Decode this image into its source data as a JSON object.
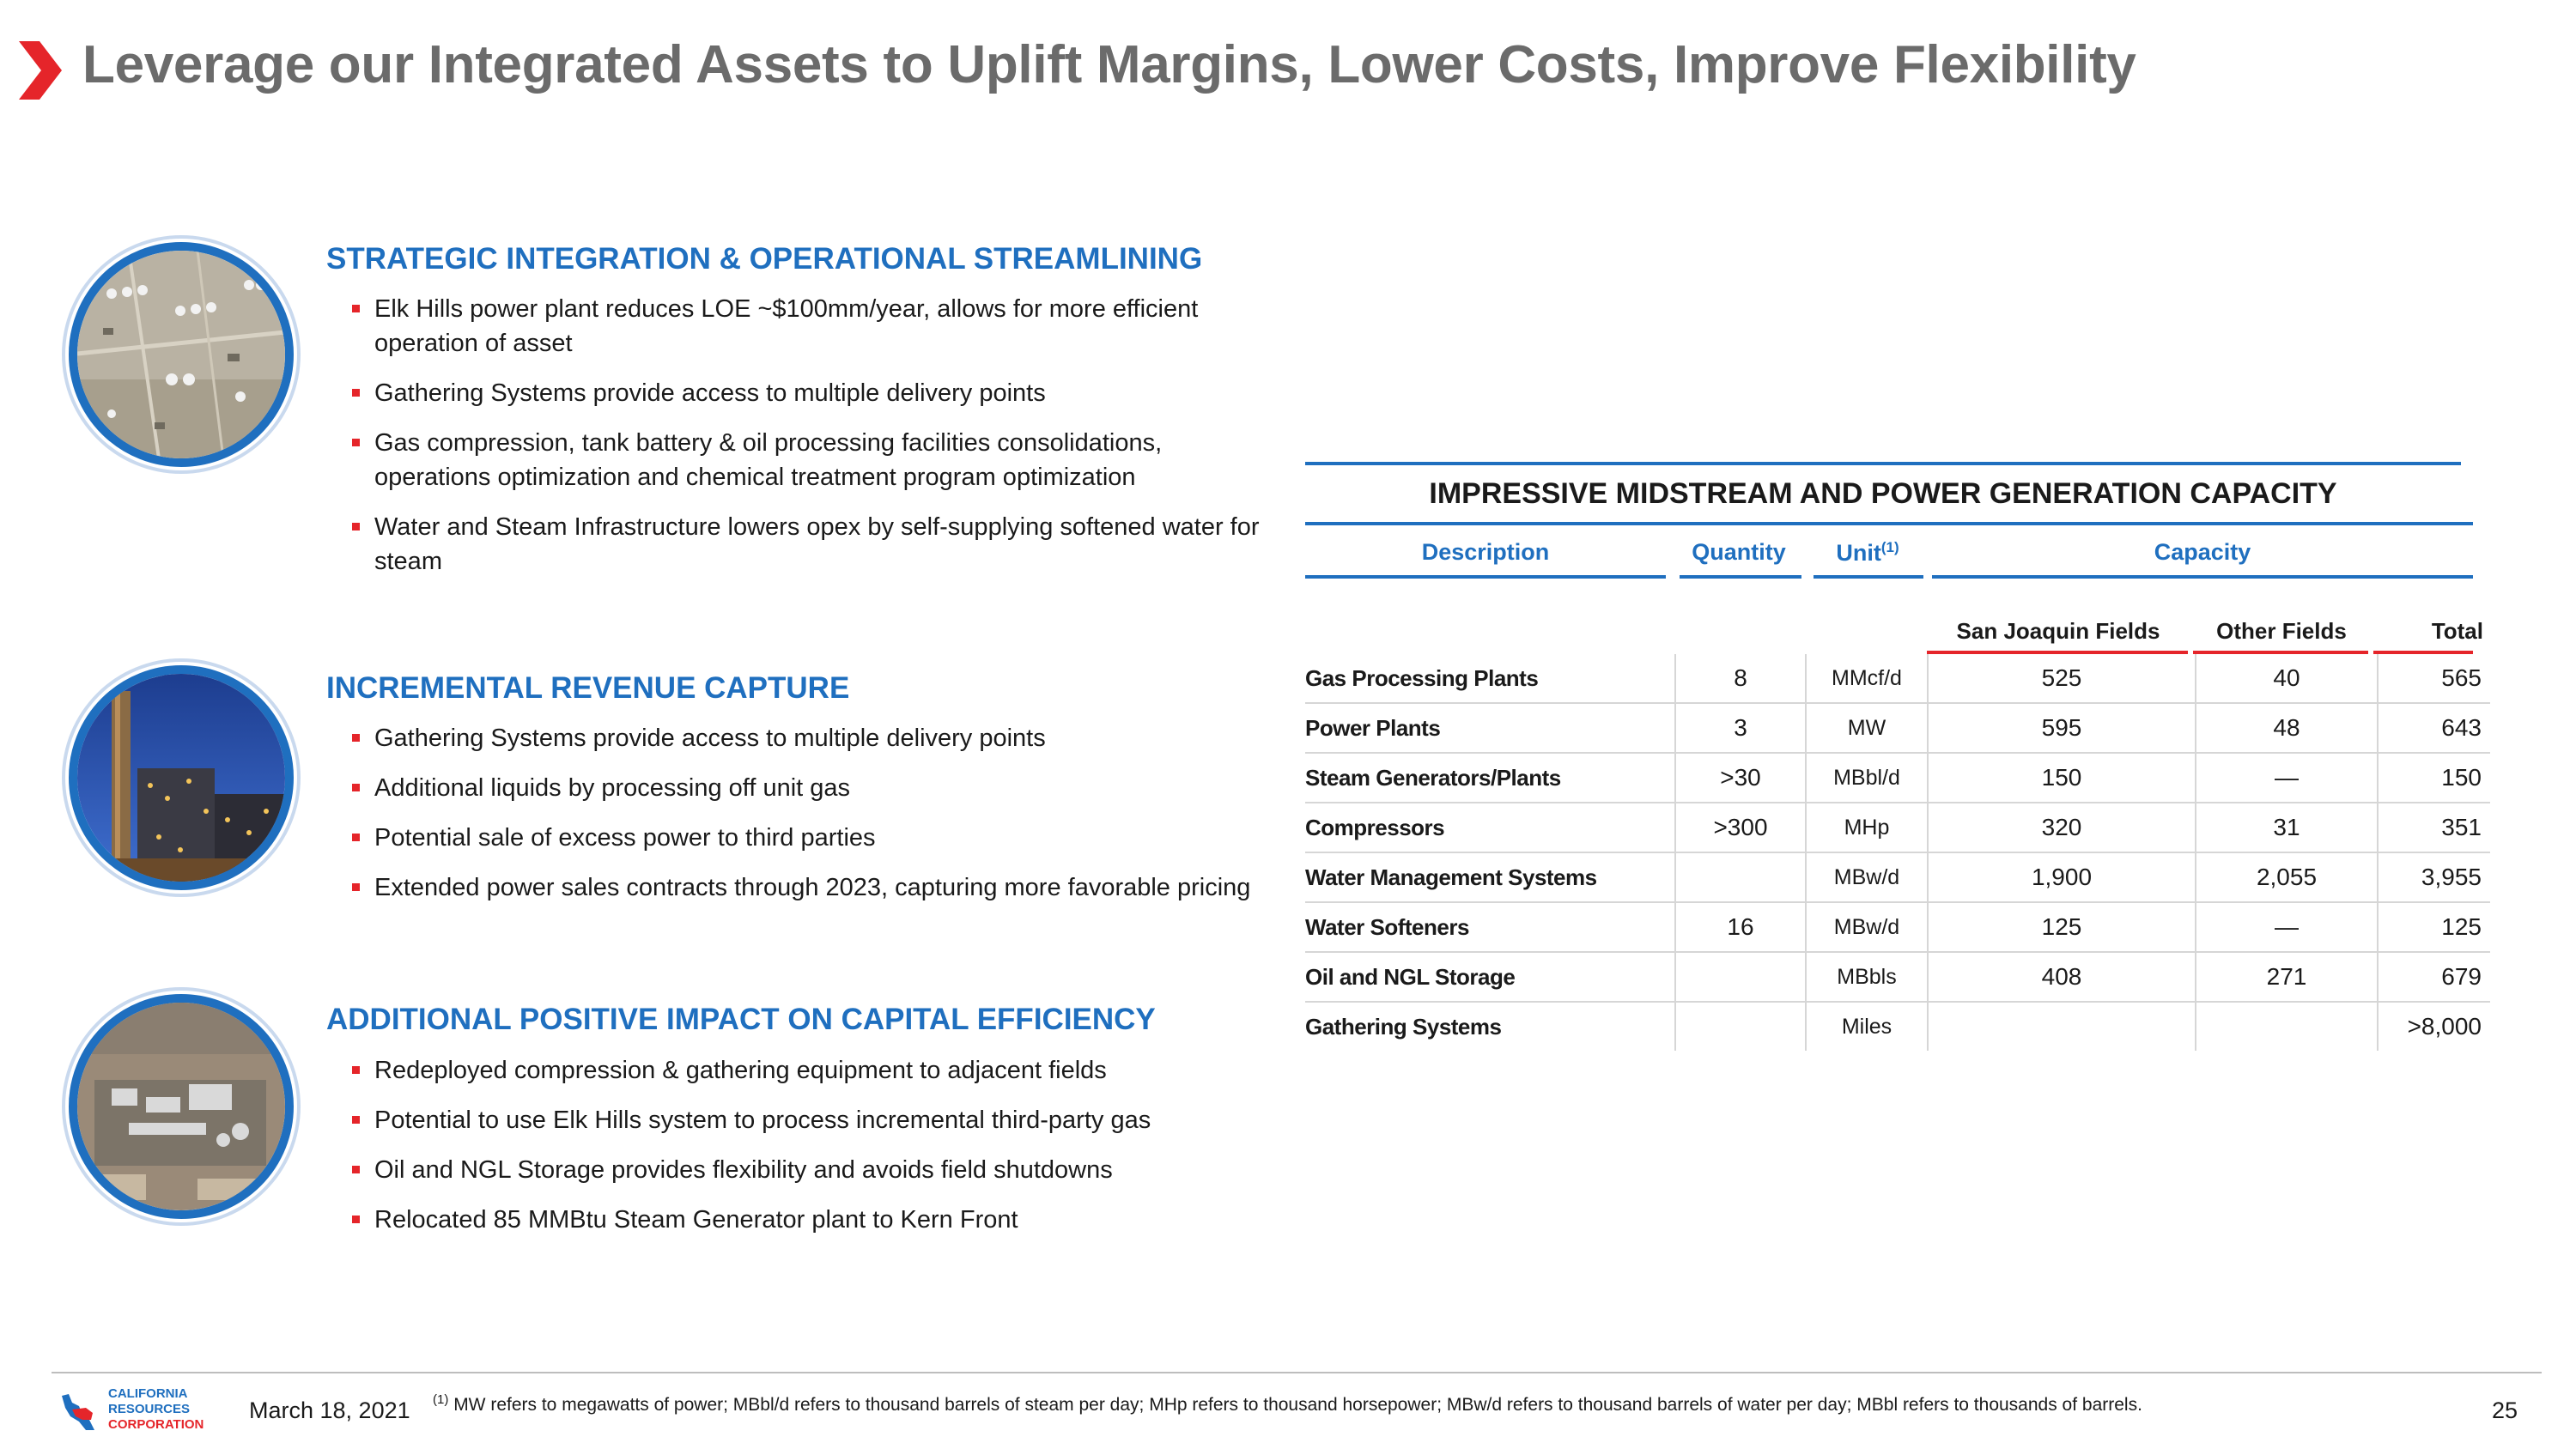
{
  "header": {
    "title": "Leverage our Integrated Assets to Uplift Margins, Lower Costs, Improve Flexibility",
    "accent_color": "#e5252a",
    "title_color": "#6b6b6b"
  },
  "sections": [
    {
      "heading": "STRATEGIC INTEGRATION & OPERATIONAL STREAMLINING",
      "bullets": [
        "Elk Hills power plant reduces LOE ~$100mm/year, allows for more efficient operation of asset",
        "Gathering Systems provide access to multiple delivery points",
        "Gas compression, tank battery & oil processing facilities consolidations, operations optimization and chemical treatment program optimization",
        "Water and Steam Infrastructure lowers opex by self-supplying softened water for steam"
      ]
    },
    {
      "heading": "INCREMENTAL REVENUE CAPTURE",
      "bullets": [
        "Gathering Systems provide access to multiple delivery points",
        "Additional liquids by processing off unit gas",
        "Potential sale of excess power to third parties",
        "Extended power sales contracts through 2023, capturing more favorable pricing"
      ]
    },
    {
      "heading": "ADDITIONAL POSITIVE IMPACT ON CAPITAL EFFICIENCY",
      "bullets": [
        "Redeployed compression & gathering equipment to adjacent fields",
        "Potential to use Elk Hills system to process incremental third-party gas",
        "Oil and NGL Storage provides flexibility and avoids field shutdowns",
        "Relocated 85 MMBtu Steam Generator plant to Kern Front"
      ]
    }
  ],
  "table": {
    "title": "IMPRESSIVE MIDSTREAM AND POWER GENERATION CAPACITY",
    "headers": {
      "description": "Description",
      "quantity": "Quantity",
      "unit": "Unit",
      "unit_note": "(1)",
      "capacity": "Capacity"
    },
    "subheaders": {
      "sj": "San Joaquin Fields",
      "other": "Other Fields",
      "total": "Total"
    },
    "rows": [
      {
        "desc": "Gas Processing Plants",
        "qty": "8",
        "unit": "MMcf/d",
        "sj": "525",
        "other": "40",
        "total": "565"
      },
      {
        "desc": "Power Plants",
        "qty": "3",
        "unit": "MW",
        "sj": "595",
        "other": "48",
        "total": "643"
      },
      {
        "desc": "Steam Generators/Plants",
        "qty": ">30",
        "unit": "MBbl/d",
        "sj": "150",
        "other": "—",
        "total": "150"
      },
      {
        "desc": "Compressors",
        "qty": ">300",
        "unit": "MHp",
        "sj": "320",
        "other": "31",
        "total": "351"
      },
      {
        "desc": "Water Management Systems",
        "qty": "",
        "unit": "MBw/d",
        "sj": "1,900",
        "other": "2,055",
        "total": "3,955"
      },
      {
        "desc": "Water Softeners",
        "qty": "16",
        "unit": "MBw/d",
        "sj": "125",
        "other": "—",
        "total": "125"
      },
      {
        "desc": "Oil and NGL Storage",
        "qty": "",
        "unit": "MBbls",
        "sj": "408",
        "other": "271",
        "total": "679"
      },
      {
        "desc": "Gathering Systems",
        "qty": "",
        "unit": "Miles",
        "sj": "",
        "other": "",
        "total": ">8,000"
      }
    ]
  },
  "footer": {
    "logo_line1": "CALIFORNIA",
    "logo_line2": "RESOURCES",
    "logo_line3": "CORPORATION",
    "date": "March 18, 2021",
    "footnote_marker": "(1)",
    "footnote": "MW refers to megawatts of power; MBbl/d refers to thousand barrels of steam per day; MHp refers to thousand horsepower; MBw/d refers to thousand barrels of water per day; MBbl refers to thousands of barrels.",
    "page_number": "25"
  }
}
